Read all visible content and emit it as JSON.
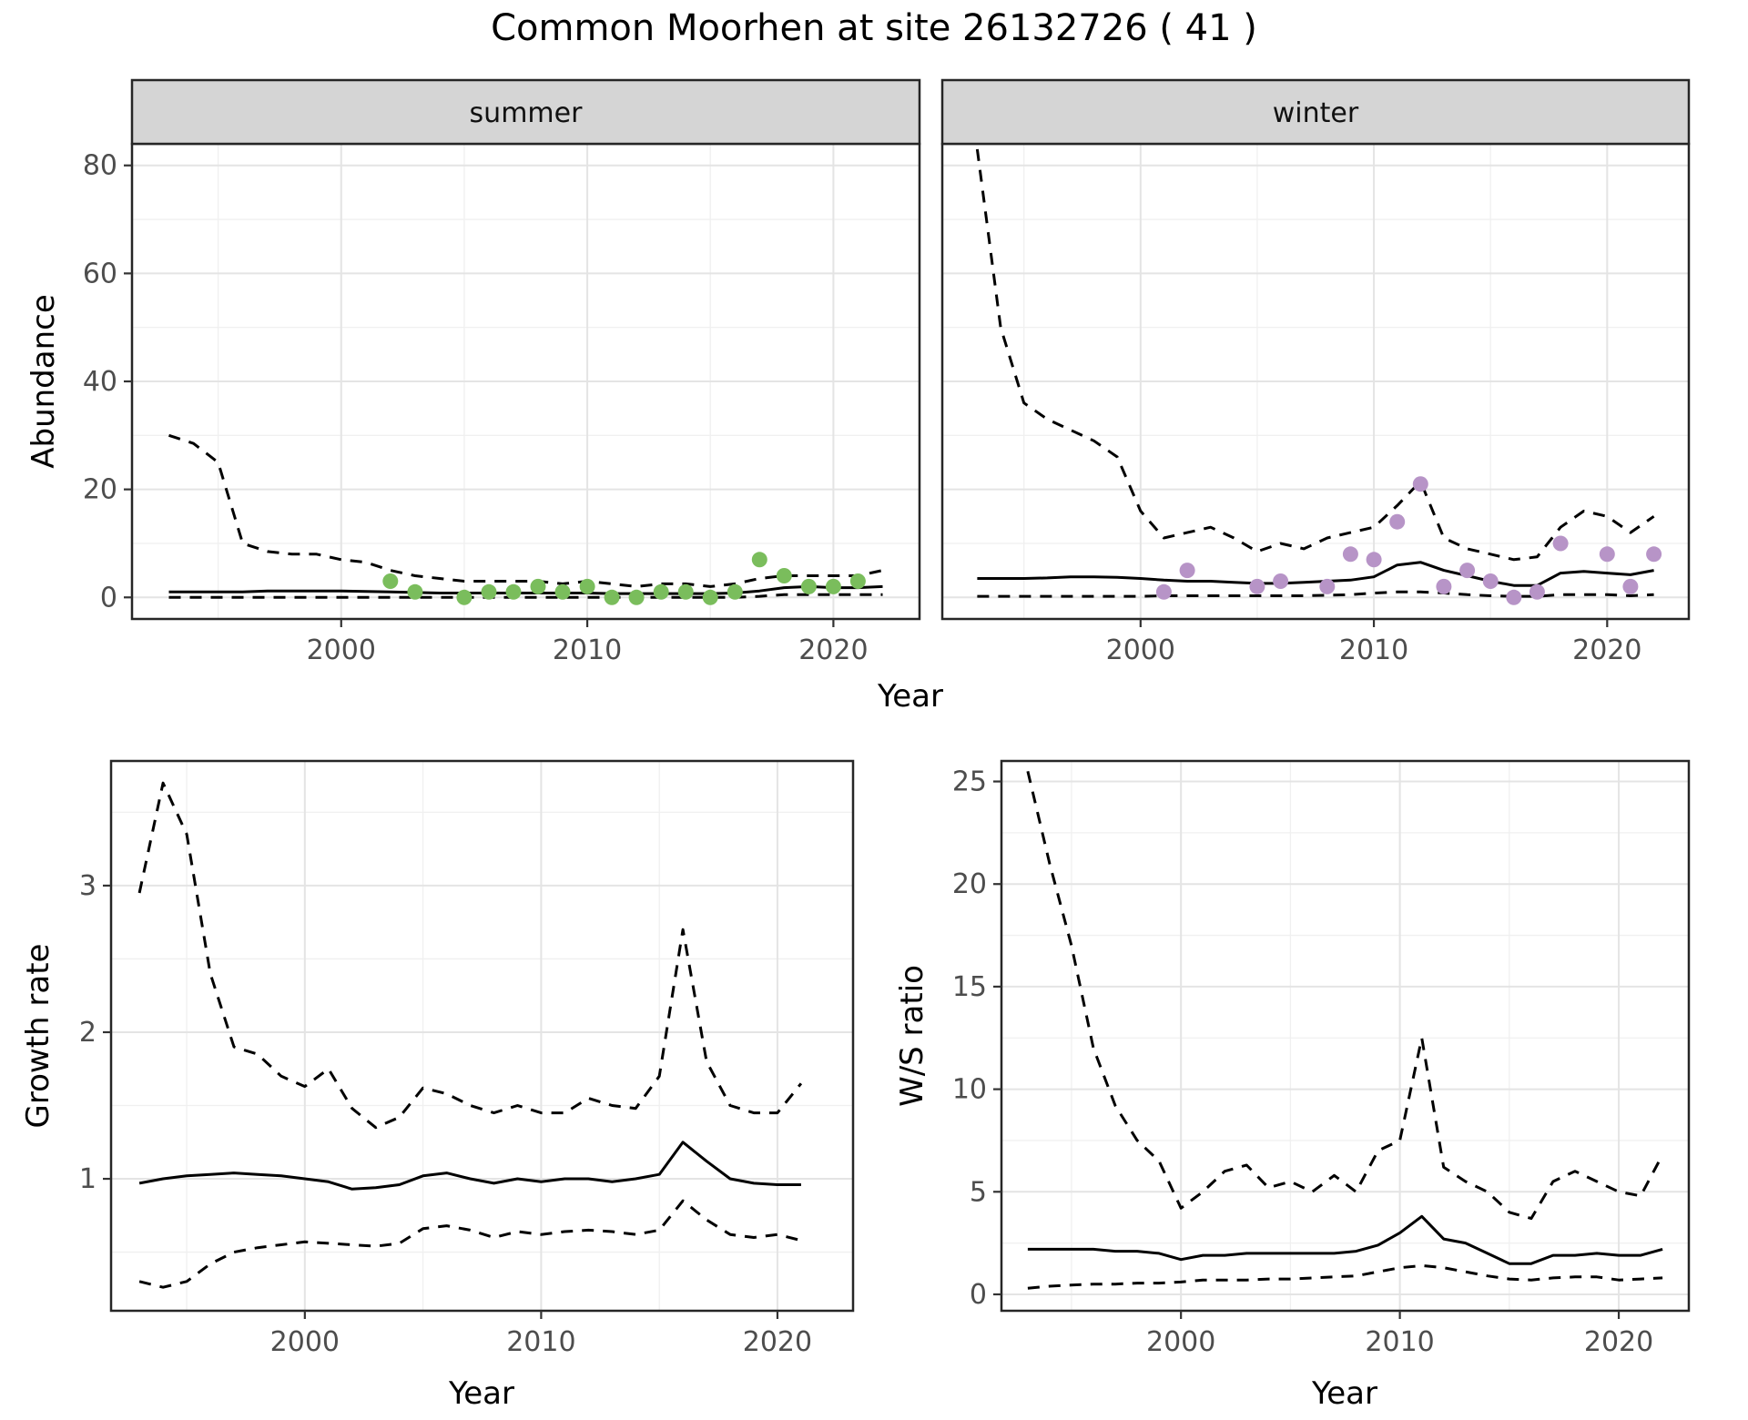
{
  "title": "Common Moorhen at site 26132726 ( 41 )",
  "axes": {
    "abundance_label": "Abundance",
    "year_label": "Year",
    "growth_label": "Growth rate",
    "ws_label": "W/S ratio"
  },
  "colors": {
    "summer_points": "#7ABD5C",
    "winter_points": "#B794C7",
    "line": "#000000",
    "strip_background": "#D5D5D5"
  },
  "chart_data": [
    {
      "id": "summer_abundance",
      "type": "line",
      "facet_label": "summer",
      "title": "",
      "xlabel": "Year",
      "ylabel": "Abundance",
      "xlim": [
        1991.5,
        2023.5
      ],
      "ylim": [
        -4,
        84
      ],
      "xticks": [
        2000,
        2010,
        2020
      ],
      "yticks": [
        0,
        20,
        40,
        60,
        80
      ],
      "x": [
        1993,
        1994,
        1995,
        1996,
        1997,
        1998,
        1999,
        2000,
        2001,
        2002,
        2003,
        2004,
        2005,
        2006,
        2007,
        2008,
        2009,
        2010,
        2011,
        2012,
        2013,
        2014,
        2015,
        2016,
        2017,
        2018,
        2019,
        2020,
        2021,
        2022
      ],
      "series": [
        {
          "name": "upper_ci",
          "style": "dashed",
          "y": [
            30,
            28.5,
            25,
            10,
            8.5,
            8,
            8,
            7,
            6.5,
            5,
            4,
            3.5,
            3,
            3,
            3,
            3,
            2.5,
            3,
            2.5,
            2,
            2.5,
            2.5,
            2,
            2.5,
            3.5,
            4,
            4,
            4,
            4,
            5
          ]
        },
        {
          "name": "median",
          "style": "solid",
          "y": [
            1,
            1,
            1,
            1,
            1.2,
            1.2,
            1.2,
            1.2,
            1.1,
            1,
            0.9,
            0.8,
            0.8,
            0.8,
            0.8,
            0.8,
            0.8,
            0.8,
            0.7,
            0.7,
            0.7,
            0.7,
            0.7,
            0.8,
            1.2,
            1.8,
            2,
            1.8,
            1.8,
            2
          ]
        },
        {
          "name": "lower_ci",
          "style": "dashed",
          "y": [
            0,
            0,
            0,
            0,
            0,
            0,
            0,
            0,
            0,
            0,
            0,
            0,
            0,
            0,
            0,
            0,
            0,
            0,
            0,
            0,
            0,
            0,
            0,
            0,
            0.2,
            0.5,
            0.5,
            0.5,
            0.5,
            0.5
          ]
        }
      ],
      "points": {
        "name": "observed_summer",
        "color": "#7ABD5C",
        "x": [
          2002,
          2003,
          2005,
          2006,
          2007,
          2008,
          2009,
          2010,
          2011,
          2012,
          2013,
          2014,
          2015,
          2016,
          2017,
          2018,
          2019,
          2020,
          2021
        ],
        "y": [
          3,
          1,
          0,
          1,
          1,
          2,
          1,
          2,
          0,
          0,
          1,
          1,
          0,
          1,
          7,
          4,
          2,
          2,
          3
        ]
      }
    },
    {
      "id": "winter_abundance",
      "type": "line",
      "facet_label": "winter",
      "title": "",
      "xlabel": "Year",
      "ylabel": "Abundance",
      "xlim": [
        1991.5,
        2023.5
      ],
      "ylim": [
        -4,
        84
      ],
      "xticks": [
        2000,
        2010,
        2020
      ],
      "yticks": [
        0,
        20,
        40,
        60,
        80
      ],
      "x": [
        1993,
        1994,
        1995,
        1996,
        1997,
        1998,
        1999,
        2000,
        2001,
        2002,
        2003,
        2004,
        2005,
        2006,
        2007,
        2008,
        2009,
        2010,
        2011,
        2012,
        2013,
        2014,
        2015,
        2016,
        2017,
        2018,
        2019,
        2020,
        2021,
        2022
      ],
      "series": [
        {
          "name": "upper_ci",
          "style": "dashed",
          "y": [
            83,
            50,
            36,
            33,
            31,
            29,
            26,
            16,
            11,
            12,
            13,
            11,
            8.5,
            10,
            9,
            11,
            12,
            13,
            17,
            21.5,
            11,
            9,
            8,
            7,
            7.5,
            13,
            16,
            15,
            12,
            15
          ]
        },
        {
          "name": "median",
          "style": "solid",
          "y": [
            3.5,
            3.5,
            3.5,
            3.6,
            3.8,
            3.8,
            3.7,
            3.5,
            3.2,
            3,
            3,
            2.8,
            2.6,
            2.6,
            2.8,
            3,
            3.2,
            3.8,
            6,
            6.5,
            5,
            4,
            3,
            2.2,
            2.2,
            4.5,
            4.8,
            4.5,
            4.2,
            5
          ]
        },
        {
          "name": "lower_ci",
          "style": "dashed",
          "y": [
            0.2,
            0.2,
            0.2,
            0.2,
            0.2,
            0.2,
            0.2,
            0.2,
            0.3,
            0.3,
            0.3,
            0.3,
            0.3,
            0.3,
            0.3,
            0.4,
            0.5,
            0.8,
            1,
            1,
            0.8,
            0.5,
            0.3,
            0.2,
            0.2,
            0.5,
            0.5,
            0.5,
            0.3,
            0.5
          ]
        }
      ],
      "points": {
        "name": "observed_winter",
        "color": "#B794C7",
        "x": [
          2001,
          2002,
          2005,
          2006,
          2008,
          2009,
          2010,
          2011,
          2012,
          2013,
          2014,
          2015,
          2016,
          2017,
          2018,
          2020,
          2021,
          2022
        ],
        "y": [
          1,
          5,
          2,
          3,
          2,
          8,
          7,
          14,
          21,
          2,
          5,
          3,
          0,
          1,
          10,
          8,
          2,
          8
        ]
      }
    },
    {
      "id": "growth_rate",
      "type": "line",
      "facet_label": "",
      "title": "",
      "xlabel": "Year",
      "ylabel": "Growth rate",
      "xlim": [
        1991.8,
        2023.2
      ],
      "ylim": [
        0.1,
        3.85
      ],
      "xticks": [
        2000,
        2010,
        2020
      ],
      "yticks": [
        1,
        2,
        3
      ],
      "x": [
        1993,
        1994,
        1995,
        1996,
        1997,
        1998,
        1999,
        2000,
        2001,
        2002,
        2003,
        2004,
        2005,
        2006,
        2007,
        2008,
        2009,
        2010,
        2011,
        2012,
        2013,
        2014,
        2015,
        2016,
        2017,
        2018,
        2019,
        2020,
        2021
      ],
      "series": [
        {
          "name": "upper_ci",
          "style": "dashed",
          "y": [
            2.95,
            3.7,
            3.35,
            2.4,
            1.9,
            1.85,
            1.7,
            1.63,
            1.75,
            1.48,
            1.35,
            1.42,
            1.62,
            1.58,
            1.5,
            1.45,
            1.5,
            1.45,
            1.45,
            1.55,
            1.5,
            1.48,
            1.7,
            2.7,
            1.8,
            1.5,
            1.45,
            1.45,
            1.65
          ]
        },
        {
          "name": "median",
          "style": "solid",
          "y": [
            0.97,
            1.0,
            1.02,
            1.03,
            1.04,
            1.03,
            1.02,
            1.0,
            0.98,
            0.93,
            0.94,
            0.96,
            1.02,
            1.04,
            1.0,
            0.97,
            1.0,
            0.98,
            1.0,
            1.0,
            0.98,
            1.0,
            1.03,
            1.25,
            1.12,
            1.0,
            0.97,
            0.96,
            0.96
          ]
        },
        {
          "name": "lower_ci",
          "style": "dashed",
          "y": [
            0.3,
            0.26,
            0.3,
            0.42,
            0.5,
            0.53,
            0.55,
            0.57,
            0.56,
            0.55,
            0.54,
            0.56,
            0.66,
            0.68,
            0.65,
            0.6,
            0.64,
            0.62,
            0.64,
            0.65,
            0.64,
            0.62,
            0.65,
            0.85,
            0.72,
            0.62,
            0.6,
            0.62,
            0.58
          ]
        }
      ]
    },
    {
      "id": "ws_ratio",
      "type": "line",
      "facet_label": "",
      "title": "",
      "xlabel": "Year",
      "ylabel": "W/S ratio",
      "xlim": [
        1991.8,
        2023.2
      ],
      "ylim": [
        -0.8,
        26
      ],
      "xticks": [
        2000,
        2010,
        2020
      ],
      "yticks": [
        0,
        5,
        10,
        15,
        20,
        25
      ],
      "x": [
        1993,
        1994,
        1995,
        1996,
        1997,
        1998,
        1999,
        2000,
        2001,
        2002,
        2003,
        2004,
        2005,
        2006,
        2007,
        2008,
        2009,
        2010,
        2011,
        2012,
        2013,
        2014,
        2015,
        2016,
        2017,
        2018,
        2019,
        2020,
        2021,
        2022
      ],
      "series": [
        {
          "name": "upper_ci",
          "style": "dashed",
          "y": [
            25.5,
            21,
            17,
            12,
            9.2,
            7.5,
            6.5,
            4.2,
            5,
            6,
            6.3,
            5.2,
            5.5,
            5,
            5.8,
            5,
            7,
            7.5,
            12.5,
            6.2,
            5.5,
            5,
            4,
            3.7,
            5.5,
            6,
            5.5,
            5,
            4.8,
            6.8
          ]
        },
        {
          "name": "median",
          "style": "solid",
          "y": [
            2.2,
            2.2,
            2.2,
            2.2,
            2.1,
            2.1,
            2.0,
            1.7,
            1.9,
            1.9,
            2.0,
            2.0,
            2.0,
            2.0,
            2.0,
            2.1,
            2.4,
            3.0,
            3.8,
            2.7,
            2.5,
            2.0,
            1.5,
            1.5,
            1.9,
            1.9,
            2.0,
            1.9,
            1.9,
            2.2
          ]
        },
        {
          "name": "lower_ci",
          "style": "dashed",
          "y": [
            0.3,
            0.4,
            0.45,
            0.5,
            0.5,
            0.55,
            0.55,
            0.6,
            0.7,
            0.7,
            0.7,
            0.75,
            0.75,
            0.8,
            0.85,
            0.9,
            1.1,
            1.3,
            1.4,
            1.3,
            1.1,
            0.9,
            0.75,
            0.7,
            0.8,
            0.85,
            0.85,
            0.7,
            0.75,
            0.8
          ]
        }
      ]
    }
  ]
}
